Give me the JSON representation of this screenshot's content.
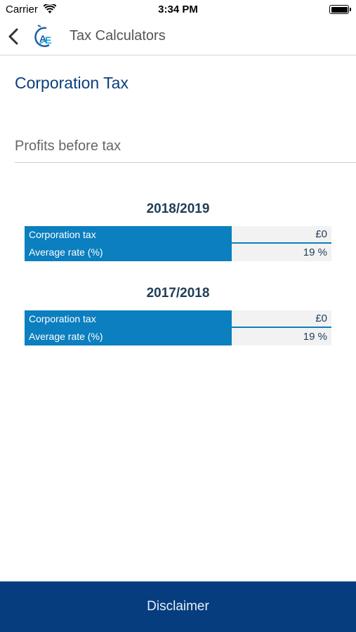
{
  "status_bar": {
    "carrier": "Carrier",
    "time": "3:34 PM"
  },
  "nav": {
    "title": "Tax Calculators",
    "back_icon": "chevron-left-icon",
    "logo_icon": "ae-logo-icon"
  },
  "page": {
    "heading": "Corporation Tax",
    "profits_placeholder": "Profits before tax",
    "profits_value": ""
  },
  "years": [
    {
      "label": "2018/2019",
      "rows": [
        {
          "label": "Corporation tax",
          "value": "£0"
        },
        {
          "label": "Average rate (%)",
          "value": "19 %"
        }
      ]
    },
    {
      "label": "2017/2018",
      "rows": [
        {
          "label": "Corporation tax",
          "value": "£0"
        },
        {
          "label": "Average rate (%)",
          "value": "19 %"
        }
      ]
    }
  ],
  "footer": {
    "disclaimer_label": "Disclaimer"
  },
  "colors": {
    "primary_dark": "#053d7f",
    "accent_blue": "#0b7fbf",
    "heading_blue": "#0a3f7e"
  }
}
